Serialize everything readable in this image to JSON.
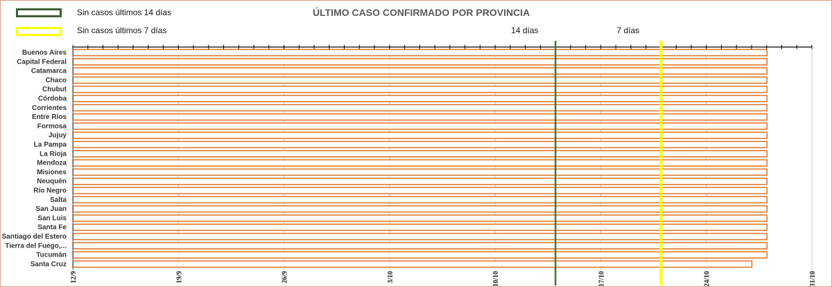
{
  "legend": {
    "items": [
      {
        "label": "Sin casos últimos 14 días",
        "color": "#3e5e34"
      },
      {
        "label": "Sin casos últimos 7 días",
        "color": "#ffff00"
      }
    ]
  },
  "chart_data": {
    "type": "bar",
    "orientation": "horizontal",
    "title": "ÚLTIMO CASO CONFIRMADO POR PROVINCIA",
    "xlabel": "",
    "ylabel": "",
    "categories": [
      "Buenos Aires",
      "Capital Federal",
      "Catamarca",
      "Chaco",
      "Chubut",
      "Córdoba",
      "Corrientes",
      "Entre Ríos",
      "Formosa",
      "Jujuy",
      "La Pampa",
      "La Rioja",
      "Mendoza",
      "Misiones",
      "Neuquén",
      "Río Negro",
      "Salta",
      "San Juan",
      "San Luis",
      "Santa Fe",
      "Santiago del Estero",
      "Tierra del Fuego,...",
      "Tucumán",
      "Santa Cruz"
    ],
    "values": [
      "2020-10-28",
      "2020-10-28",
      "2020-10-28",
      "2020-10-28",
      "2020-10-28",
      "2020-10-28",
      "2020-10-28",
      "2020-10-28",
      "2020-10-28",
      "2020-10-28",
      "2020-10-28",
      "2020-10-28",
      "2020-10-28",
      "2020-10-28",
      "2020-10-28",
      "2020-10-28",
      "2020-10-28",
      "2020-10-28",
      "2020-10-28",
      "2020-10-28",
      "2020-10-28",
      "2020-10-28",
      "2020-10-28",
      "2020-10-27"
    ],
    "xlim": [
      "2020-09-12",
      "2020-10-31"
    ],
    "xticks": [
      "12/9",
      "19/9",
      "26/9",
      "3/10",
      "10/10",
      "17/10",
      "24/10",
      "31/10"
    ],
    "grid": "vertical",
    "bar_color": "#ffffff",
    "bar_border_color": "#e07020",
    "reference_lines": [
      {
        "label": "14 días",
        "date": "2020-10-14",
        "color": "#3e7a2e"
      },
      {
        "label": "7 días",
        "date": "2020-10-21",
        "color": "#ffff00"
      }
    ]
  }
}
